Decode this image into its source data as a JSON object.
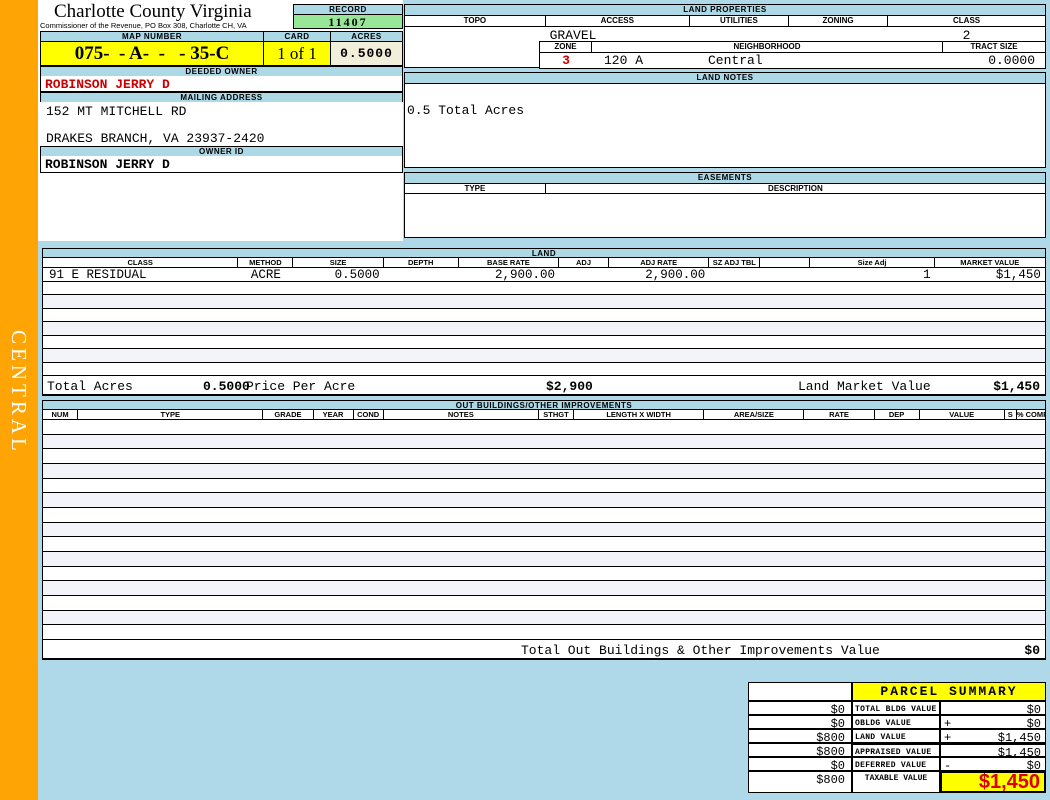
{
  "district": "CENTRAL",
  "header": {
    "county_title": "Charlotte County Virginia",
    "commissioner_line": "Commissioner of the Revenue, PO Box 308, Charlotte CH, VA",
    "record_label": "RECORD",
    "record_number": "11407",
    "map_number_label": "MAP NUMBER",
    "map_number": "075-  - A-  -   - 35-C",
    "card_label": "CARD",
    "card": "1 of 1",
    "acres_label": "ACRES",
    "acres": "0.5000",
    "deeded_owner_label": "DEEDED OWNER",
    "deeded_owner": "ROBINSON JERRY D",
    "mailing_address_label": "MAILING ADDRESS",
    "address_line1": "152 MT MITCHELL RD",
    "address_line2": "DRAKES BRANCH, VA 23937-2420",
    "owner_id_label": "OWNER ID",
    "owner_id": "ROBINSON JERRY D"
  },
  "land_properties": {
    "title": "LAND PROPERTIES",
    "columns": [
      "TOPO",
      "ACCESS",
      "UTILITIES",
      "ZONING",
      "CLASS"
    ],
    "access": "GRAVEL",
    "class": "2",
    "zone_label": "ZONE",
    "zone": "3",
    "neighborhood_label": "NEIGHBORHOOD",
    "neighborhood_code": "120 A",
    "neighborhood_name": "Central",
    "tract_size_label": "TRACT SIZE",
    "tract_size": "0.0000"
  },
  "land_notes": {
    "title": "LAND NOTES",
    "note": "0.5 Total Acres"
  },
  "easements": {
    "title": "EASEMENTS",
    "columns": [
      "TYPE",
      "DESCRIPTION"
    ]
  },
  "land": {
    "title": "LAND",
    "columns": [
      "CLASS",
      "METHOD",
      "SIZE",
      "DEPTH",
      "BASE RATE",
      "ADJ",
      "ADJ RATE",
      "SZ ADJ TBL",
      "",
      "Size Adj",
      "MARKET VALUE"
    ],
    "row": {
      "class": "91 E RESIDUAL",
      "method": "ACRE",
      "size": "0.5000",
      "base_rate": "2,900.00",
      "adj_rate": "2,900.00",
      "size_adj": "1",
      "market_value": "$1,450"
    },
    "total_acres_label": "Total Acres",
    "total_acres": "0.5000",
    "price_per_acre_label": "Price Per Acre",
    "price_per_acre": "$2,900",
    "market_value_label": "Land Market Value",
    "market_value": "$1,450"
  },
  "out_buildings": {
    "title": "OUT BUILDINGS/OTHER IMPROVEMENTS",
    "columns": [
      "NUM",
      "TYPE",
      "GRADE",
      "YEAR",
      "COND",
      "NOTES",
      "STHGT",
      "LENGTH X WIDTH",
      "AREA/SIZE",
      "RATE",
      "DEP",
      "VALUE",
      "S",
      "% COMP"
    ],
    "total_label": "Total Out Buildings & Other Improvements Value",
    "total_value": "$0"
  },
  "parcel_summary": {
    "title": "PARCEL SUMMARY",
    "rows": [
      {
        "prior": "$0",
        "label": "TOTAL BLDG VALUE",
        "op": "",
        "value": "$0"
      },
      {
        "prior": "$0",
        "label": "OBLDG VALUE",
        "op": "+",
        "value": "$0"
      },
      {
        "prior": "$800",
        "label": "LAND VALUE",
        "op": "+",
        "value": "$1,450"
      },
      {
        "prior": "$800",
        "label": "APPRAISED VALUE",
        "op": "",
        "value": "$1,450"
      },
      {
        "prior": "$0",
        "label": "DEFERRED VALUE",
        "op": "-",
        "value": "$0"
      }
    ],
    "taxable": {
      "prior": "$800",
      "label": "TAXABLE VALUE",
      "value": "$1,450"
    }
  }
}
